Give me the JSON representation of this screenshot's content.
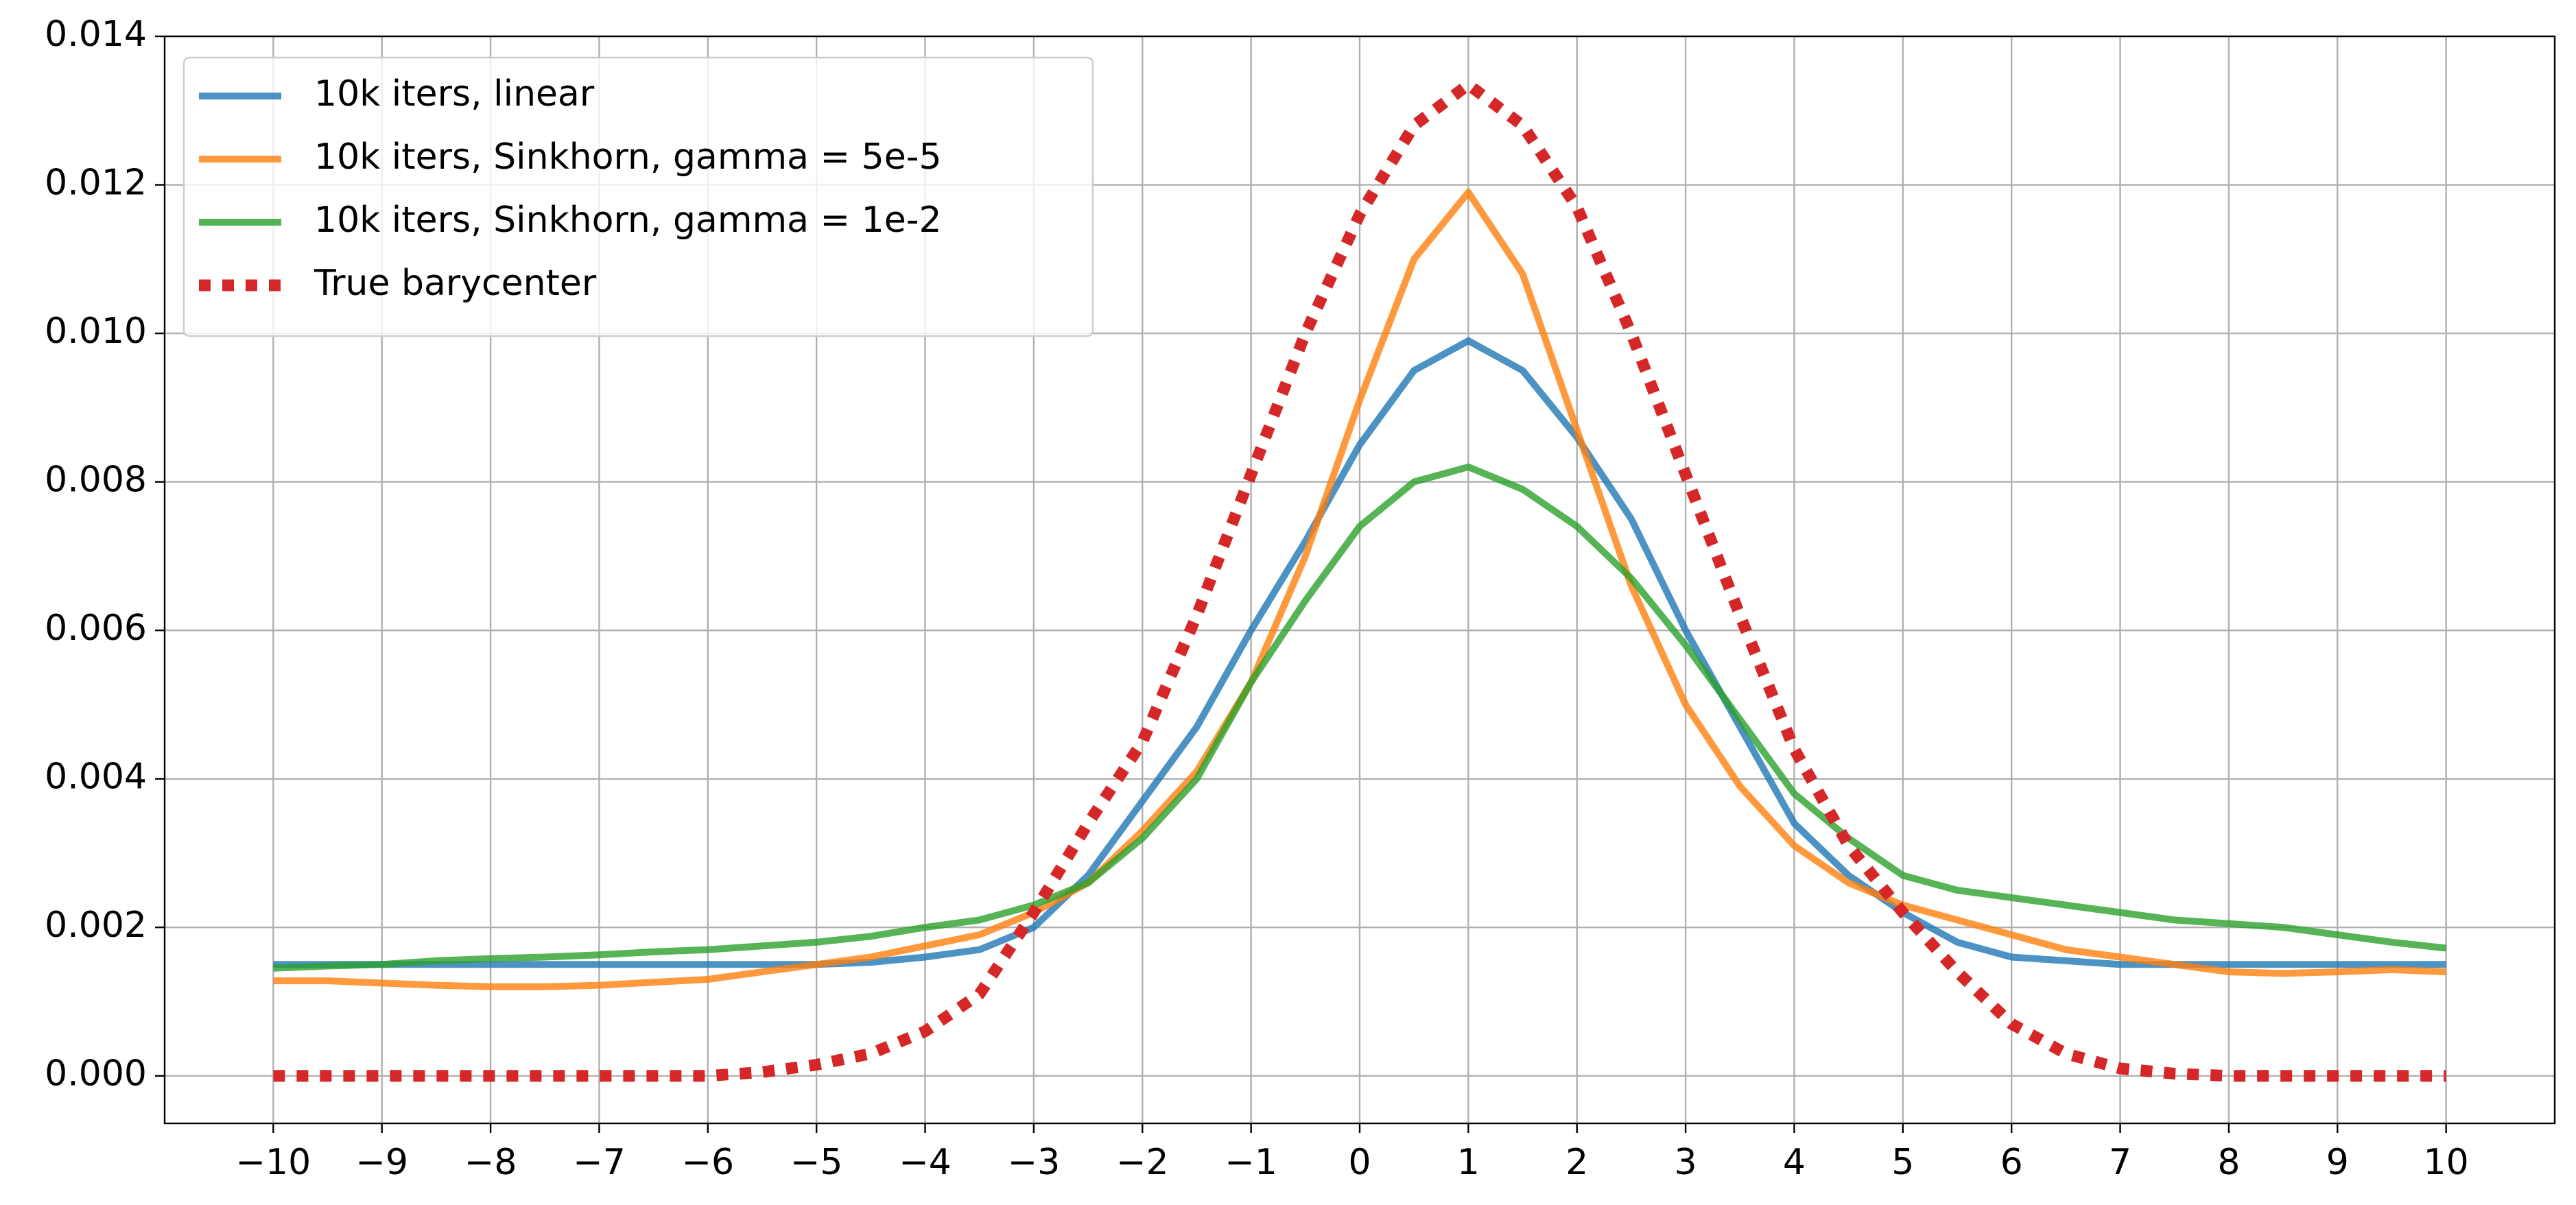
{
  "chart_data": {
    "type": "line",
    "x": [
      -10,
      -9.5,
      -9,
      -8.5,
      -8,
      -7.5,
      -7,
      -6.5,
      -6,
      -5.5,
      -5,
      -4.5,
      -4,
      -3.5,
      -3,
      -2.5,
      -2,
      -1.5,
      -1,
      -0.5,
      0,
      0.5,
      1,
      1.5,
      2,
      2.5,
      3,
      3.5,
      4,
      4.5,
      5,
      5.5,
      6,
      6.5,
      7,
      7.5,
      8,
      8.5,
      9,
      9.5,
      10
    ],
    "series": [
      {
        "name": "10k iters, linear",
        "color": "#1f77b4",
        "linestyle": "solid",
        "values": [
          0.0015,
          0.0015,
          0.0015,
          0.0015,
          0.0015,
          0.0015,
          0.0015,
          0.0015,
          0.0015,
          0.0015,
          0.0015,
          0.00153,
          0.0016,
          0.0017,
          0.002,
          0.0027,
          0.0037,
          0.0047,
          0.006,
          0.0072,
          0.0085,
          0.0095,
          0.0099,
          0.0095,
          0.0086,
          0.0075,
          0.006,
          0.0047,
          0.0034,
          0.0027,
          0.0022,
          0.0018,
          0.0016,
          0.00155,
          0.0015,
          0.0015,
          0.0015,
          0.0015,
          0.0015,
          0.0015,
          0.0015
        ]
      },
      {
        "name": "10k iters, Sinkhorn, gamma = 5e-5",
        "color": "#ff7f0e",
        "linestyle": "solid",
        "values": [
          0.00128,
          0.00128,
          0.00125,
          0.00122,
          0.0012,
          0.0012,
          0.00122,
          0.00126,
          0.0013,
          0.0014,
          0.0015,
          0.0016,
          0.00175,
          0.0019,
          0.0022,
          0.0026,
          0.0033,
          0.0041,
          0.0053,
          0.007,
          0.0091,
          0.011,
          0.0119,
          0.0108,
          0.0087,
          0.0066,
          0.005,
          0.0039,
          0.0031,
          0.0026,
          0.0023,
          0.0021,
          0.0019,
          0.0017,
          0.0016,
          0.0015,
          0.0014,
          0.00138,
          0.0014,
          0.00143,
          0.0014
        ]
      },
      {
        "name": "10k iters, Sinkhorn, gamma = 1e-2",
        "color": "#2ca02c",
        "linestyle": "solid",
        "values": [
          0.00145,
          0.00148,
          0.0015,
          0.00155,
          0.00158,
          0.0016,
          0.00163,
          0.00167,
          0.0017,
          0.00175,
          0.0018,
          0.00188,
          0.002,
          0.0021,
          0.0023,
          0.0026,
          0.0032,
          0.004,
          0.0053,
          0.0064,
          0.0074,
          0.008,
          0.0082,
          0.0079,
          0.0074,
          0.0067,
          0.0058,
          0.0048,
          0.0038,
          0.0032,
          0.0027,
          0.0025,
          0.0024,
          0.0023,
          0.0022,
          0.0021,
          0.00205,
          0.002,
          0.0019,
          0.0018,
          0.00172
        ]
      },
      {
        "name": "True barycenter",
        "color": "#d62728",
        "linestyle": "dotted",
        "values": [
          0,
          0,
          0,
          0,
          0,
          0,
          0,
          0,
          0,
          5e-05,
          0.00015,
          0.0003,
          0.0006,
          0.0011,
          0.0022,
          0.0034,
          0.0045,
          0.0062,
          0.0081,
          0.01,
          0.0116,
          0.0128,
          0.01335,
          0.0128,
          0.0117,
          0.01,
          0.0081,
          0.0062,
          0.0044,
          0.0031,
          0.0022,
          0.0014,
          0.0007,
          0.0003,
          0.0001,
          3e-05,
          0,
          0,
          0,
          0,
          0
        ]
      }
    ],
    "xlim": [
      -11,
      11
    ],
    "ylim": [
      -0.00064,
      0.014
    ],
    "xticks": [
      {
        "value": -10,
        "label": "−10"
      },
      {
        "value": -9,
        "label": "−9"
      },
      {
        "value": -8,
        "label": "−8"
      },
      {
        "value": -7,
        "label": "−7"
      },
      {
        "value": -6,
        "label": "−6"
      },
      {
        "value": -5,
        "label": "−5"
      },
      {
        "value": -4,
        "label": "−4"
      },
      {
        "value": -3,
        "label": "−3"
      },
      {
        "value": -2,
        "label": "−2"
      },
      {
        "value": -1,
        "label": "−1"
      },
      0,
      1,
      2,
      3,
      4,
      5,
      6,
      7,
      8,
      9,
      10
    ],
    "yticks": [
      {
        "value": 0,
        "label": "0.000"
      },
      0.002,
      0.004,
      0.006,
      0.008,
      {
        "value": 0.01,
        "label": "0.010"
      },
      0.012,
      0.014
    ],
    "grid": true,
    "legend": "upper left"
  }
}
